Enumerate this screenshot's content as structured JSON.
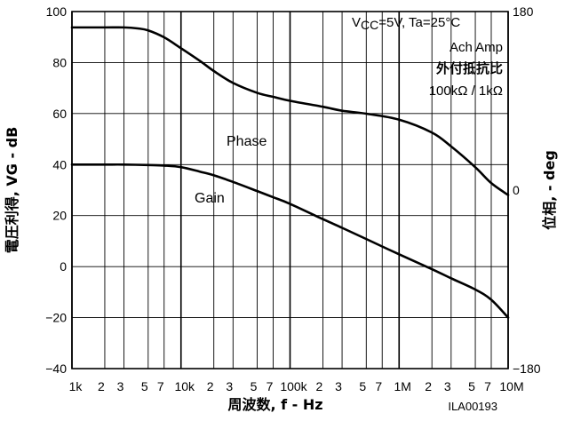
{
  "chart_data": {
    "type": "line",
    "title": "",
    "xlabel": "周波数, f - Hz",
    "ylabel": "電圧利得, VG - dB",
    "y2label": "位相, - deg",
    "xscale": "log",
    "xlim": [
      1000,
      10000000
    ],
    "ylim": [
      -40,
      100
    ],
    "y2lim": [
      -180,
      180
    ],
    "grid": true,
    "x_tick_labels": [
      {
        "x": 1000,
        "label": "1k",
        "major": true
      },
      {
        "x": 2000,
        "label": "2",
        "major": false
      },
      {
        "x": 3000,
        "label": "3",
        "major": false
      },
      {
        "x": 5000,
        "label": "5",
        "major": false
      },
      {
        "x": 7000,
        "label": "7",
        "major": false
      },
      {
        "x": 10000,
        "label": "10k",
        "major": true
      },
      {
        "x": 20000,
        "label": "2",
        "major": false
      },
      {
        "x": 30000,
        "label": "3",
        "major": false
      },
      {
        "x": 50000,
        "label": "5",
        "major": false
      },
      {
        "x": 70000,
        "label": "7",
        "major": false
      },
      {
        "x": 100000,
        "label": "100k",
        "major": true
      },
      {
        "x": 200000,
        "label": "2",
        "major": false
      },
      {
        "x": 300000,
        "label": "3",
        "major": false
      },
      {
        "x": 500000,
        "label": "5",
        "major": false
      },
      {
        "x": 700000,
        "label": "7",
        "major": false
      },
      {
        "x": 1000000,
        "label": "1M",
        "major": true
      },
      {
        "x": 2000000,
        "label": "2",
        "major": false
      },
      {
        "x": 3000000,
        "label": "3",
        "major": false
      },
      {
        "x": 5000000,
        "label": "5",
        "major": false
      },
      {
        "x": 7000000,
        "label": "7",
        "major": false
      },
      {
        "x": 10000000,
        "label": "10M",
        "major": true
      }
    ],
    "y_tick_labels": [
      {
        "y": 100,
        "label": "100"
      },
      {
        "y": 80,
        "label": "80"
      },
      {
        "y": 60,
        "label": "60"
      },
      {
        "y": 40,
        "label": "40"
      },
      {
        "y": 20,
        "label": "20"
      },
      {
        "y": 0,
        "label": "0"
      },
      {
        "y": -20,
        "label": "−20"
      },
      {
        "y": -40,
        "label": "−40"
      }
    ],
    "y2_tick_labels": [
      {
        "y": 180,
        "label": "180"
      },
      {
        "y": 0,
        "label": "0"
      },
      {
        "y": -180,
        "label": "−180"
      }
    ],
    "annotations": {
      "vcc_sub": "CC",
      "vcc_rest": "=5V, Ta=25°C",
      "amp": "Ach Amp",
      "external": "外付抵抗比",
      "ratio": "100kΩ / 1kΩ",
      "code": "ILA00193"
    },
    "series": [
      {
        "name": "Gain",
        "axis": "left",
        "x": [
          1000,
          2000,
          3000,
          5000,
          7000,
          10000,
          15000,
          20000,
          30000,
          50000,
          70000,
          100000,
          200000,
          300000,
          500000,
          1000000,
          2000000,
          3000000,
          5000000,
          7000000,
          10000000
        ],
        "y": [
          40,
          40,
          40,
          39.8,
          39.6,
          39,
          37.2,
          35.8,
          33.2,
          29.6,
          27.2,
          24.6,
          18.6,
          15.2,
          10.8,
          4.8,
          -1,
          -4.6,
          -9,
          -13,
          -20
        ]
      },
      {
        "name": "Phase",
        "axis": "right",
        "x": [
          1000,
          2000,
          3000,
          4000,
          5000,
          7000,
          10000,
          15000,
          20000,
          30000,
          50000,
          70000,
          100000,
          200000,
          300000,
          500000,
          1000000,
          2000000,
          3000000,
          5000000,
          7000000,
          10000000
        ],
        "y": [
          164,
          164,
          164,
          163,
          161,
          154,
          143,
          130,
          120,
          108,
          98,
          94,
          90,
          84,
          80,
          77,
          71,
          58,
          44,
          23,
          7,
          -5
        ]
      }
    ]
  }
}
